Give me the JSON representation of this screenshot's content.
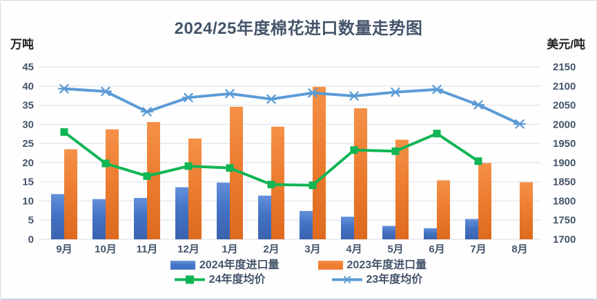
{
  "title": "2024/25年度棉花进口数量走势图",
  "left_axis_unit": "万吨",
  "right_axis_unit": "美元/吨",
  "colors": {
    "title_text": "#44546A",
    "axis_text": "#44546A",
    "gridline": "#dde3ed",
    "bar_2024": "#4472C4",
    "bar_2023": "#ED7D31",
    "line_24": "#10B554",
    "line_23": "#5B9BD5"
  },
  "chart_data": {
    "type": "bar+line combo",
    "title": "2024/25年度棉花进口数量走势图",
    "categories": [
      "9月",
      "10月",
      "11月",
      "12月",
      "1月",
      "2月",
      "3月",
      "4月",
      "5月",
      "6月",
      "7月",
      "8月"
    ],
    "series": [
      {
        "name": "2024年度进口量",
        "type": "bar",
        "axis": "left",
        "color": "#4472C4",
        "values": [
          11.8,
          10.5,
          10.8,
          13.6,
          14.8,
          11.4,
          7.4,
          5.9,
          3.5,
          2.9,
          5.3,
          null
        ]
      },
      {
        "name": "2023年度进口量",
        "type": "bar",
        "axis": "left",
        "color": "#ED7D31",
        "values": [
          23.5,
          28.7,
          30.6,
          26.3,
          34.6,
          29.4,
          39.8,
          34.2,
          26.0,
          15.4,
          19.9,
          14.9
        ]
      },
      {
        "name": "24年度均价",
        "type": "line",
        "marker": "square",
        "axis": "right",
        "color": "#10B554",
        "values": [
          1980,
          1898,
          1865,
          1891,
          1886,
          1843,
          1841,
          1933,
          1930,
          1976,
          1904,
          null
        ]
      },
      {
        "name": "23年度均价",
        "type": "line",
        "marker": "asterisk",
        "axis": "right",
        "color": "#5B9BD5",
        "values": [
          2093,
          2086,
          2033,
          2070,
          2080,
          2066,
          2082,
          2074,
          2084,
          2091,
          2051,
          2001
        ]
      }
    ],
    "left_axis": {
      "label": "万吨",
      "min": 0,
      "max": 45,
      "step": 5,
      "ticks": [
        45,
        40,
        35,
        30,
        25,
        20,
        15,
        10,
        5,
        0
      ]
    },
    "right_axis": {
      "label": "美元/吨",
      "min": 1700,
      "max": 2150,
      "step": 50,
      "ticks": [
        2150,
        2100,
        2050,
        2000,
        1950,
        1900,
        1850,
        1800,
        1750,
        1700
      ]
    },
    "grid": "horizontal",
    "legend_position": "bottom"
  }
}
